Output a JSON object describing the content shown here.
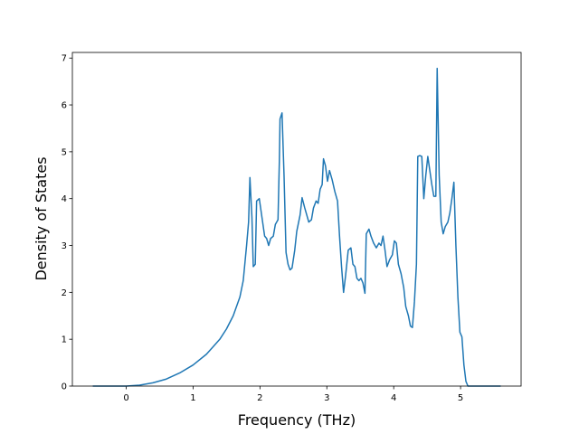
{
  "chart_data": {
    "type": "line",
    "xlabel": "Frequency (THz)",
    "ylabel": "Density of States",
    "xlim": [
      -0.805,
      5.905
    ],
    "ylim": [
      0,
      7.12
    ],
    "xticks": [
      0,
      1,
      2,
      3,
      4,
      5
    ],
    "yticks": [
      0,
      1,
      2,
      3,
      4,
      5,
      6,
      7
    ],
    "series": [
      {
        "color": "#1f77b4",
        "x": [
          -0.5,
          -0.2,
          0,
          0.2,
          0.4,
          0.6,
          0.8,
          1.0,
          1.2,
          1.4,
          1.5,
          1.6,
          1.7,
          1.75,
          1.8,
          1.83,
          1.85,
          1.88,
          1.9,
          1.93,
          1.95,
          1.99,
          2.03,
          2.07,
          2.1,
          2.13,
          2.16,
          2.2,
          2.23,
          2.27,
          2.29,
          2.3,
          2.33,
          2.36,
          2.39,
          2.42,
          2.45,
          2.48,
          2.52,
          2.55,
          2.6,
          2.63,
          2.67,
          2.7,
          2.73,
          2.77,
          2.8,
          2.84,
          2.87,
          2.9,
          2.93,
          2.95,
          2.98,
          3.01,
          3.04,
          3.08,
          3.12,
          3.16,
          3.19,
          3.22,
          3.25,
          3.28,
          3.32,
          3.36,
          3.39,
          3.42,
          3.45,
          3.48,
          3.51,
          3.54,
          3.57,
          3.59,
          3.63,
          3.66,
          3.7,
          3.74,
          3.78,
          3.81,
          3.84,
          3.87,
          3.9,
          3.94,
          3.98,
          4.01,
          4.04,
          4.07,
          4.11,
          4.15,
          4.18,
          4.22,
          4.25,
          4.28,
          4.31,
          4.34,
          4.36,
          4.39,
          4.42,
          4.45,
          4.48,
          4.51,
          4.54,
          4.57,
          4.6,
          4.63,
          4.65,
          4.68,
          4.71,
          4.74,
          4.77,
          4.81,
          4.84,
          4.87,
          4.9,
          4.93,
          4.96,
          4.99,
          5.02,
          5.05,
          5.08,
          5.11,
          5.3,
          5.6
        ],
        "values": [
          0,
          0,
          0,
          0.02,
          0.07,
          0.15,
          0.28,
          0.45,
          0.68,
          1.0,
          1.22,
          1.5,
          1.9,
          2.25,
          3.0,
          3.5,
          4.45,
          3.6,
          2.55,
          2.6,
          3.95,
          4.0,
          3.6,
          3.2,
          3.15,
          3.0,
          3.15,
          3.2,
          3.45,
          3.55,
          4.8,
          5.7,
          5.83,
          4.5,
          2.85,
          2.6,
          2.48,
          2.52,
          2.9,
          3.3,
          3.65,
          4.02,
          3.8,
          3.65,
          3.5,
          3.55,
          3.8,
          3.95,
          3.9,
          4.2,
          4.3,
          4.85,
          4.7,
          4.37,
          4.6,
          4.4,
          4.15,
          3.95,
          3.2,
          2.55,
          2.0,
          2.35,
          2.9,
          2.95,
          2.6,
          2.55,
          2.3,
          2.25,
          2.3,
          2.2,
          1.98,
          3.25,
          3.35,
          3.2,
          3.05,
          2.95,
          3.05,
          3.0,
          3.2,
          2.9,
          2.55,
          2.7,
          2.8,
          3.1,
          3.05,
          2.6,
          2.4,
          2.1,
          1.7,
          1.5,
          1.28,
          1.25,
          1.8,
          2.6,
          4.9,
          4.92,
          4.9,
          4.0,
          4.5,
          4.9,
          4.6,
          4.3,
          4.05,
          4.05,
          6.78,
          4.5,
          3.5,
          3.25,
          3.4,
          3.5,
          3.7,
          4.0,
          4.35,
          3.0,
          1.9,
          1.15,
          1.05,
          0.45,
          0.1,
          0,
          0,
          0
        ]
      }
    ]
  }
}
